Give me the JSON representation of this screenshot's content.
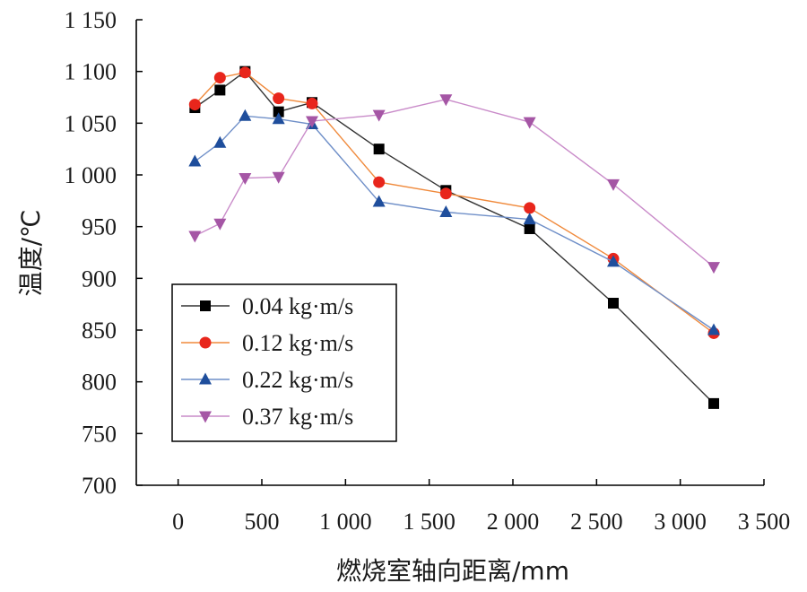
{
  "chart_data": {
    "type": "line",
    "xlabel": "燃烧室轴向距离/mm",
    "ylabel": "温度/℃",
    "xlim": [
      -250,
      3500
    ],
    "ylim": [
      700,
      1150
    ],
    "x_ticks": [
      0,
      500,
      1000,
      1500,
      2000,
      2500,
      3000,
      3500
    ],
    "x_tick_labels": [
      "0",
      "500",
      "1 000",
      "1 500",
      "2 000",
      "2 500",
      "3 000",
      "3 500"
    ],
    "y_ticks": [
      700,
      750,
      800,
      850,
      900,
      950,
      1000,
      1050,
      1100,
      1150
    ],
    "y_tick_labels": [
      "700",
      "750",
      "800",
      "850",
      "900",
      "950",
      "1 000",
      "1 050",
      "1 100",
      "1 150"
    ],
    "grid": false,
    "legend_position": "bottom-left",
    "series": [
      {
        "name": "0.04 kg·m/s",
        "marker": "square",
        "color": "#000000",
        "line_color": "#333333",
        "x": [
          100,
          250,
          400,
          600,
          800,
          1200,
          1600,
          2100,
          2600,
          3200
        ],
        "y": [
          1065,
          1082,
          1100,
          1061,
          1070,
          1025,
          985,
          948,
          876,
          779
        ]
      },
      {
        "name": "0.12 kg·m/s",
        "marker": "circle",
        "color": "#e8261c",
        "line_color": "#f08a3c",
        "x": [
          100,
          250,
          400,
          600,
          800,
          1200,
          1600,
          2100,
          2600,
          3200
        ],
        "y": [
          1068,
          1094,
          1099,
          1074,
          1069,
          993,
          982,
          968,
          919,
          847
        ]
      },
      {
        "name": "0.22 kg·m/s",
        "marker": "triangle-up",
        "color": "#1f4e9c",
        "line_color": "#6f8fc8",
        "x": [
          100,
          250,
          400,
          600,
          800,
          1200,
          1600,
          2100,
          2600,
          3200
        ],
        "y": [
          1013,
          1031,
          1057,
          1054,
          1049,
          974,
          964,
          957,
          916,
          850
        ]
      },
      {
        "name": "0.37 kg·m/s",
        "marker": "triangle-down",
        "color": "#a556a5",
        "line_color": "#c98bc9",
        "x": [
          100,
          250,
          400,
          600,
          800,
          1200,
          1600,
          2100,
          2600,
          3200
        ],
        "y": [
          941,
          953,
          997,
          998,
          1052,
          1058,
          1073,
          1051,
          991,
          911
        ]
      }
    ]
  }
}
